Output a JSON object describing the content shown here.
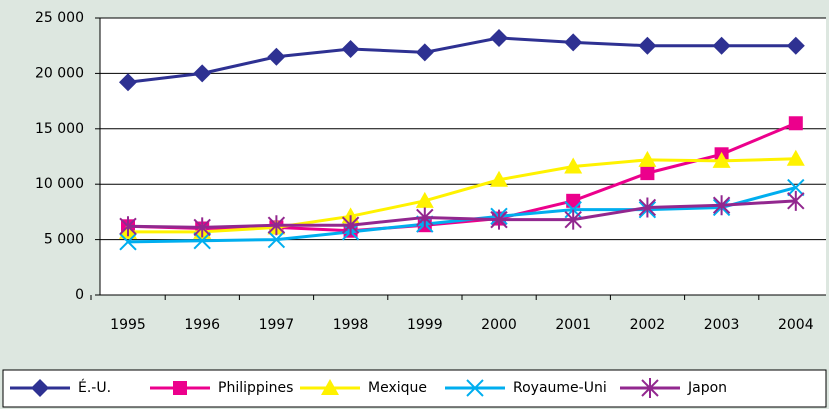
{
  "chart_data": {
    "type": "line",
    "categories": [
      "1995",
      "1996",
      "1997",
      "1998",
      "1999",
      "2000",
      "2001",
      "2002",
      "2003",
      "2004"
    ],
    "series": [
      {
        "name": "É.-U.",
        "color": "#2e3192",
        "marker": "diamond",
        "values": [
          19200,
          20000,
          21500,
          22200,
          21900,
          23200,
          22800,
          22500,
          22500,
          22500
        ]
      },
      {
        "name": "Philippines",
        "color": "#ec008c",
        "marker": "square",
        "values": [
          6200,
          6000,
          6100,
          5800,
          6300,
          6900,
          8500,
          11000,
          12700,
          15500
        ]
      },
      {
        "name": "Mexique",
        "color": "#fff200",
        "marker": "triangle",
        "values": [
          5700,
          5700,
          6100,
          7100,
          8500,
          10400,
          11600,
          12200,
          12100,
          12300
        ]
      },
      {
        "name": "Royaume-Uni",
        "color": "#00aeef",
        "marker": "x",
        "values": [
          4800,
          4900,
          5000,
          5700,
          6400,
          7100,
          7700,
          7700,
          7900,
          9700
        ]
      },
      {
        "name": "Japon",
        "color": "#92278f",
        "marker": "star",
        "values": [
          6200,
          6100,
          6300,
          6300,
          7000,
          6800,
          6800,
          7900,
          8100,
          8500
        ]
      }
    ],
    "ylim": [
      0,
      25000
    ],
    "yticks": [
      0,
      {
        "value": 5000,
        "label": "5 000"
      },
      {
        "value": 10000,
        "label": "10 000"
      },
      {
        "value": 15000,
        "label": "15 000"
      },
      {
        "value": 20000,
        "label": "20 000"
      },
      {
        "value": 25000,
        "label": "25 000"
      }
    ],
    "grid": true,
    "legend": "bottom"
  }
}
